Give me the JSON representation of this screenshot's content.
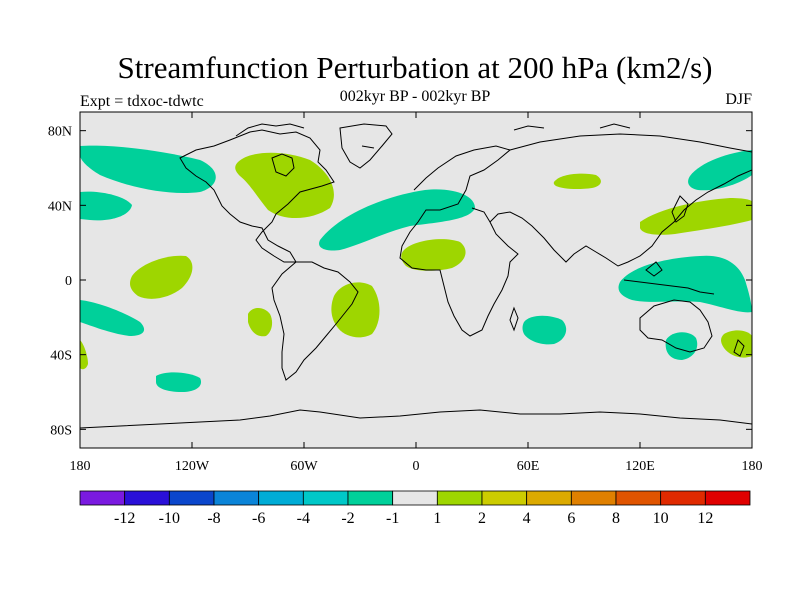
{
  "title": "Streamfunction Perturbation at 200 hPa (km2/s)",
  "subtitle": "002kyr BP - 002kyr BP",
  "left_label": "Expt = tdxoc-tdwtc",
  "season": "DJF",
  "map": {
    "projection": "cylindrical equidistant",
    "lon_range": [
      -180,
      180
    ],
    "lat_range": [
      -90,
      90
    ],
    "background_color": "#e6e6e6",
    "lat_ticks": [
      {
        "lat": 80,
        "label": "80N"
      },
      {
        "lat": 40,
        "label": "40N"
      },
      {
        "lat": 0,
        "label": "0"
      },
      {
        "lat": -40,
        "label": "40S"
      },
      {
        "lat": -80,
        "label": "80S"
      }
    ],
    "lon_ticks": [
      {
        "lon": -180,
        "label": "180"
      },
      {
        "lon": -120,
        "label": "120W"
      },
      {
        "lon": -60,
        "label": "60W"
      },
      {
        "lon": 0,
        "label": "0"
      },
      {
        "lon": 60,
        "label": "60E"
      },
      {
        "lon": 120,
        "label": "120E"
      },
      {
        "lon": 180,
        "label": "180"
      }
    ],
    "anomaly_regions": [
      {
        "name": "north-pacific-east",
        "sign": "negative",
        "color": "#00d09a"
      },
      {
        "name": "north-pacific-west",
        "sign": "negative",
        "color": "#00d09a"
      },
      {
        "name": "north-america",
        "sign": "positive",
        "color": "#9ed600"
      },
      {
        "name": "north-atlantic",
        "sign": "negative",
        "color": "#00d09a"
      },
      {
        "name": "central-asia",
        "sign": "positive",
        "color": "#9ed600"
      },
      {
        "name": "east-asia-pacific",
        "sign": "positive",
        "color": "#9ed600"
      },
      {
        "name": "tropical-pacific-east",
        "sign": "positive",
        "color": "#9ed600"
      },
      {
        "name": "tropical-africa",
        "sign": "positive",
        "color": "#9ed600"
      },
      {
        "name": "tropical-west-pacific",
        "sign": "negative",
        "color": "#00d09a"
      },
      {
        "name": "south-america",
        "sign": "positive",
        "color": "#9ed600"
      },
      {
        "name": "south-pacific",
        "sign": "negative",
        "color": "#00d09a"
      },
      {
        "name": "south-pacific-small",
        "sign": "positive",
        "color": "#9ed600"
      },
      {
        "name": "south-indian-ocean",
        "sign": "negative",
        "color": "#00d09a"
      },
      {
        "name": "australia-south",
        "sign": "negative",
        "color": "#00d09a"
      },
      {
        "name": "new-zealand",
        "sign": "positive",
        "color": "#9ed600"
      },
      {
        "name": "southern-ocean-pacific",
        "sign": "negative",
        "color": "#00d09a"
      }
    ]
  },
  "colorbar": {
    "boundaries": [
      "-12",
      "-10",
      "-8",
      "-6",
      "-4",
      "-2",
      "-1",
      "1",
      "2",
      "4",
      "6",
      "8",
      "10",
      "12"
    ],
    "colors": [
      "#7a1ae0",
      "#2a10d8",
      "#0a46cc",
      "#0a84d8",
      "#00acd6",
      "#00c8c8",
      "#00d09a",
      "#e6e6e6",
      "#9ed600",
      "#cccc00",
      "#dcaa00",
      "#e08000",
      "#e05400",
      "#e02a00",
      "#e00000"
    ]
  }
}
